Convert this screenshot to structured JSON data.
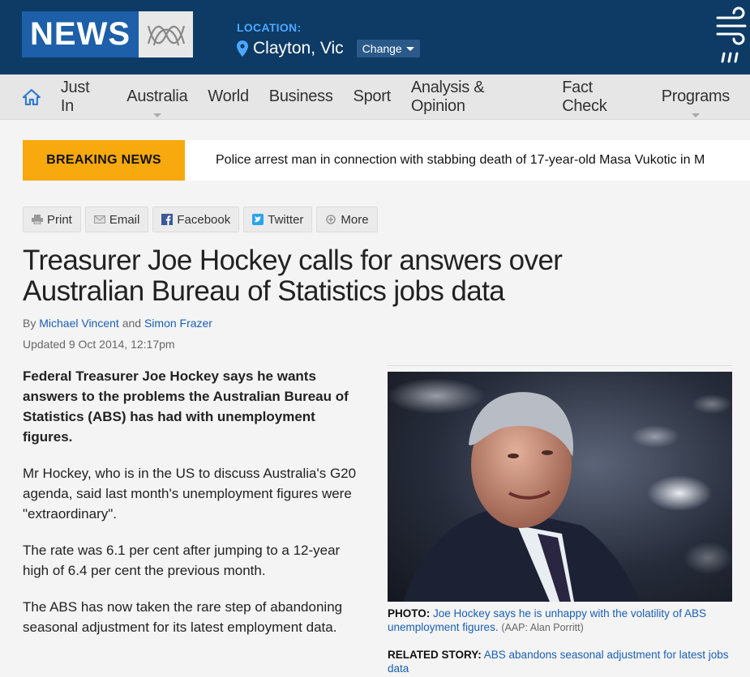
{
  "header": {
    "logo_text": "NEWS",
    "location_label": "LOCATION:",
    "location_city": "Clayton, Vic",
    "change_label": "Change"
  },
  "nav": {
    "items": [
      {
        "label": "Just In"
      },
      {
        "label": "Australia"
      },
      {
        "label": "World"
      },
      {
        "label": "Business"
      },
      {
        "label": "Sport"
      },
      {
        "label": "Analysis & Opinion"
      },
      {
        "label": "Fact Check"
      },
      {
        "label": "Programs"
      }
    ]
  },
  "breaking": {
    "label": "BREAKING NEWS",
    "text": "Police arrest man in connection with stabbing death of 17-year-old Masa Vukotic in M"
  },
  "share": {
    "print": "Print",
    "email": "Email",
    "facebook": "Facebook",
    "twitter": "Twitter",
    "more": "More"
  },
  "article": {
    "headline": "Treasurer Joe Hockey calls for answers over Australian Bureau of Statistics jobs data",
    "by": "By",
    "author1": "Michael Vincent",
    "and": "and",
    "author2": "Simon Frazer",
    "updated": "Updated 9 Oct 2014, 12:17pm",
    "lede": "Federal Treasurer Joe Hockey says he wants answers to the problems the Australian Bureau of Statistics (ABS) has had with unemployment figures.",
    "p1": "Mr Hockey, who is in the US to discuss Australia's G20 agenda, said last month's unemployment figures were \"extraordinary\".",
    "p2": "The rate was 6.1 per cent after jumping to a 12-year high of 6.4 per cent the previous month.",
    "p3": "The ABS has now taken the rare step of abandoning seasonal adjustment for its latest employment data."
  },
  "photo": {
    "label": "PHOTO:",
    "caption": "Joe Hockey says he is unhappy with the volatility of ABS unemployment figures.",
    "credit": "(AAP: Alan Porritt)"
  },
  "related": {
    "label": "RELATED STORY:",
    "link": "ABS abandons seasonal adjustment for latest jobs data"
  },
  "colors": {
    "header_bg": "#0d3b66",
    "breaking_label_bg": "#f7a90d",
    "link": "#1a5fb4"
  }
}
